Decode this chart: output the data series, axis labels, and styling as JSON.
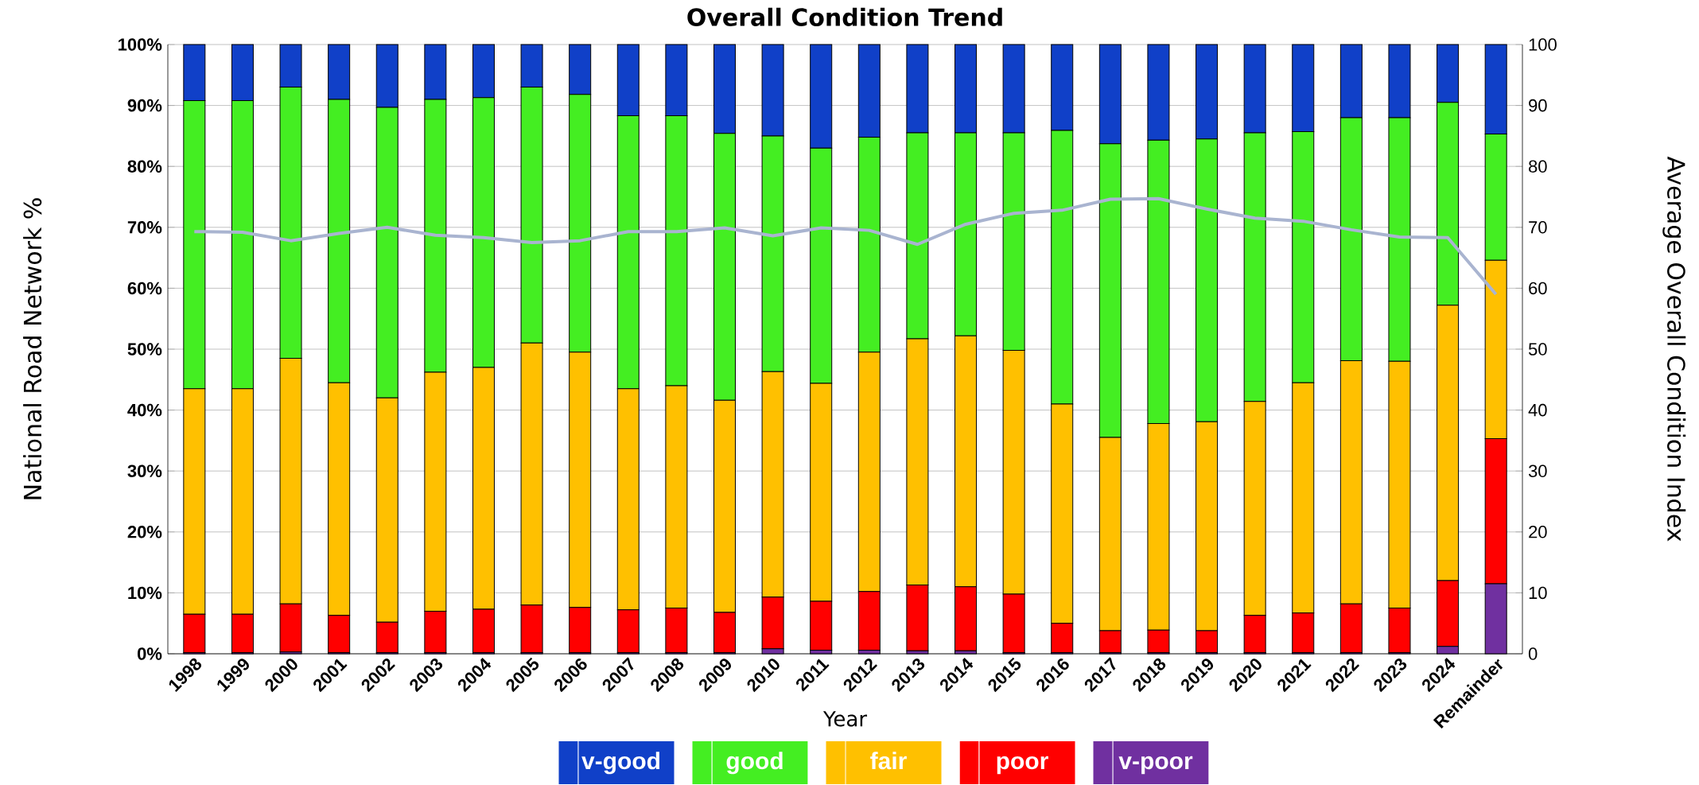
{
  "chart_data": {
    "type": "bar",
    "title": "Overall Condition Trend",
    "xlabel": "Year",
    "ylabel": "National Road Network %",
    "y2label": "Average Overall Condition Index",
    "categories": [
      "1998",
      "1999",
      "2000",
      "2001",
      "2002",
      "2003",
      "2004",
      "2005",
      "2006",
      "2007",
      "2008",
      "2009",
      "2010",
      "2011",
      "2012",
      "2013",
      "2014",
      "2015",
      "2016",
      "2017",
      "2018",
      "2019",
      "2020",
      "2021",
      "2022",
      "2023",
      "2024",
      "Remainder"
    ],
    "stacked": true,
    "legend": "bottom",
    "grid": "y",
    "ylim": [
      0,
      100
    ],
    "yticks": [
      {
        "value": 0,
        "label": "0%"
      },
      {
        "value": 10,
        "label": "10%"
      },
      {
        "value": 20,
        "label": "20%"
      },
      {
        "value": 30,
        "label": "30%"
      },
      {
        "value": 40,
        "label": "40%"
      },
      {
        "value": 50,
        "label": "50%"
      },
      {
        "value": 60,
        "label": "60%"
      },
      {
        "value": 70,
        "label": "70%"
      },
      {
        "value": 80,
        "label": "80%"
      },
      {
        "value": 90,
        "label": "90%"
      },
      {
        "value": 100,
        "label": "100%"
      }
    ],
    "y2lim": [
      0,
      100
    ],
    "y2ticks": [
      0,
      10,
      20,
      30,
      40,
      50,
      60,
      70,
      80,
      90,
      100
    ],
    "series": [
      {
        "name": "v-poor",
        "color": "#7030a0",
        "values": [
          0.2,
          0.2,
          0.3,
          0.2,
          0.2,
          0.2,
          0.2,
          0.2,
          0.2,
          0.2,
          0.2,
          0.2,
          0.8,
          0.6,
          0.6,
          0.5,
          0.5,
          0.2,
          0.2,
          0.2,
          0.2,
          0.2,
          0.2,
          0.2,
          0.2,
          0.2,
          1.2,
          11.5
        ]
      },
      {
        "name": "poor",
        "color": "#ff0000",
        "values": [
          6.3,
          6.3,
          7.9,
          6.1,
          5.0,
          6.8,
          7.1,
          7.8,
          7.4,
          7.0,
          7.3,
          6.6,
          8.5,
          8.0,
          9.6,
          10.8,
          10.5,
          9.6,
          4.8,
          3.6,
          3.7,
          3.6,
          6.1,
          6.5,
          8.0,
          7.3,
          10.8,
          23.8
        ]
      },
      {
        "name": "fair",
        "color": "#ffc000",
        "values": [
          37.0,
          37.0,
          40.3,
          38.2,
          36.8,
          39.2,
          39.7,
          43.0,
          41.9,
          36.3,
          36.5,
          34.8,
          37.0,
          35.8,
          39.3,
          40.4,
          41.2,
          40.0,
          36.0,
          31.7,
          33.9,
          34.3,
          35.1,
          37.8,
          39.9,
          40.5,
          45.2,
          29.3
        ]
      },
      {
        "name": "good",
        "color": "#44ee22",
        "values": [
          47.3,
          47.3,
          44.5,
          46.5,
          47.7,
          44.8,
          44.3,
          42.0,
          42.3,
          44.8,
          44.3,
          43.8,
          38.7,
          38.6,
          35.3,
          33.8,
          33.3,
          35.7,
          44.9,
          48.2,
          46.5,
          46.4,
          44.1,
          41.2,
          39.9,
          40.0,
          33.3,
          20.7
        ]
      },
      {
        "name": "v-good",
        "color": "#1040c8",
        "values": [
          9.2,
          9.2,
          7.0,
          9.0,
          10.3,
          9.0,
          8.7,
          7.0,
          8.2,
          11.7,
          11.7,
          14.6,
          15.0,
          17.0,
          15.2,
          14.5,
          14.5,
          14.5,
          14.1,
          16.3,
          15.7,
          15.5,
          14.5,
          14.3,
          12.0,
          12.0,
          9.5,
          14.7
        ]
      },
      {
        "type": "line",
        "axis": "y2",
        "color": "#a9b4d0",
        "values": [
          69.3,
          69.2,
          67.8,
          69.0,
          70.0,
          68.7,
          68.3,
          67.5,
          67.8,
          69.3,
          69.3,
          69.9,
          68.6,
          69.9,
          69.5,
          67.2,
          70.5,
          72.3,
          72.8,
          74.6,
          74.7,
          73.0,
          71.5,
          71.0,
          69.6,
          68.4,
          68.3,
          59.0
        ]
      }
    ]
  }
}
